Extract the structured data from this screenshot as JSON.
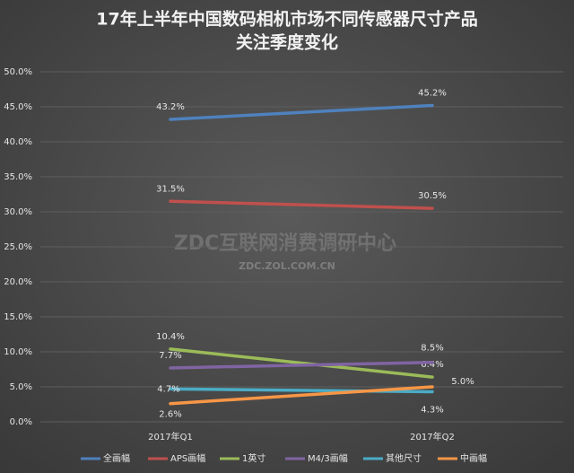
{
  "chart_data": {
    "type": "line",
    "title": [
      "17年上半年中国数码相机市场不同传感器尺寸产品",
      "关注季度变化"
    ],
    "watermark": [
      "ZDC互联网消费调研中心",
      "ZDC.ZOL.COM.CN"
    ],
    "categories": [
      "2017年Q1",
      "2017年Q2"
    ],
    "ylim": [
      0,
      50
    ],
    "yticks": [
      {
        "value": 0,
        "label": "0.0%"
      },
      {
        "value": 5,
        "label": "5.0%"
      },
      {
        "value": 10,
        "label": "10.0%"
      },
      {
        "value": 15,
        "label": "15.0%"
      },
      {
        "value": 20,
        "label": "20.0%"
      },
      {
        "value": 25,
        "label": "25.0%"
      },
      {
        "value": 30,
        "label": "30.0%"
      },
      {
        "value": 35,
        "label": "35.0%"
      },
      {
        "value": 40,
        "label": "40.0%"
      },
      {
        "value": 45,
        "label": "45.0%"
      },
      {
        "value": 50,
        "label": "50.0%"
      }
    ],
    "grid": true,
    "legend": "bottom",
    "series": [
      {
        "name": "全画幅",
        "color": "#4f81bd",
        "values": [
          43.2,
          45.2
        ],
        "value_labels": [
          "43.2%",
          "45.2%"
        ]
      },
      {
        "name": "APS画幅",
        "color": "#c0504d",
        "values": [
          31.5,
          30.5
        ],
        "value_labels": [
          "31.5%",
          "30.5%"
        ]
      },
      {
        "name": "1英寸",
        "color": "#9bbb59",
        "values": [
          10.4,
          6.4
        ],
        "value_labels": [
          "10.4%",
          "6.4%"
        ]
      },
      {
        "name": "M4/3画幅",
        "color": "#8064a2",
        "values": [
          7.7,
          8.5
        ],
        "value_labels": [
          "7.7%",
          "8.5%"
        ]
      },
      {
        "name": "其他尺寸",
        "color": "#4bacc6",
        "values": [
          4.7,
          4.3
        ],
        "value_labels": [
          "4.7%",
          "4.3%"
        ]
      },
      {
        "name": "中画幅",
        "color": "#f79646",
        "values": [
          2.6,
          5.0
        ],
        "value_labels": [
          "2.6%",
          "5.0%"
        ]
      }
    ]
  }
}
